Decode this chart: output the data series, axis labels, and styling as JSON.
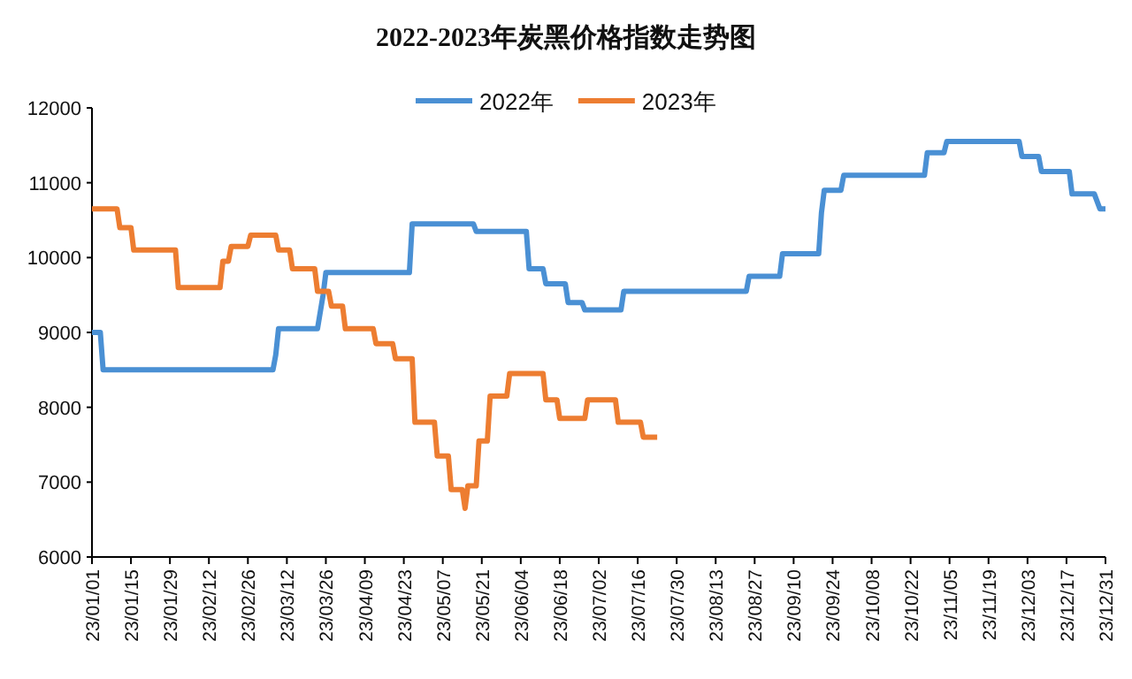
{
  "chart_data": {
    "type": "line",
    "title": "2022-2023年炭黑价格指数走势图",
    "legend": "top",
    "xlim": [
      "--01-01",
      "--12-31"
    ],
    "ylim": [
      6000,
      12000
    ],
    "yticks": [
      6000,
      7000,
      8000,
      9000,
      10000,
      11000,
      12000
    ],
    "xticks": [
      {
        "value": "--01-01",
        "label": "23/01/01"
      },
      {
        "value": "--01-15",
        "label": "23/01/15"
      },
      {
        "value": "--01-29",
        "label": "23/01/29"
      },
      {
        "value": "--02-12",
        "label": "23/02/12"
      },
      {
        "value": "--02-26",
        "label": "23/02/26"
      },
      {
        "value": "--03-12",
        "label": "23/03/12"
      },
      {
        "value": "--03-26",
        "label": "23/03/26"
      },
      {
        "value": "--04-09",
        "label": "23/04/09"
      },
      {
        "value": "--04-23",
        "label": "23/04/23"
      },
      {
        "value": "--05-07",
        "label": "23/05/07"
      },
      {
        "value": "--05-21",
        "label": "23/05/21"
      },
      {
        "value": "--06-04",
        "label": "23/06/04"
      },
      {
        "value": "--06-18",
        "label": "23/06/18"
      },
      {
        "value": "--07-02",
        "label": "23/07/02"
      },
      {
        "value": "--07-16",
        "label": "23/07/16"
      },
      {
        "value": "--07-30",
        "label": "23/07/30"
      },
      {
        "value": "--08-13",
        "label": "23/08/13"
      },
      {
        "value": "--08-27",
        "label": "23/08/27"
      },
      {
        "value": "--09-10",
        "label": "23/09/10"
      },
      {
        "value": "--09-24",
        "label": "23/09/24"
      },
      {
        "value": "--10-08",
        "label": "23/10/08"
      },
      {
        "value": "--10-22",
        "label": "23/10/22"
      },
      {
        "value": "--11-05",
        "label": "23/11/05"
      },
      {
        "value": "--11-19",
        "label": "23/11/19"
      },
      {
        "value": "--12-03",
        "label": "23/12/03"
      },
      {
        "value": "--12-17",
        "label": "23/12/17"
      },
      {
        "value": "--12-31",
        "label": "23/12/31"
      }
    ],
    "series": [
      {
        "name": "2022年",
        "color": "#4a90d4",
        "x": [
          "--01-01",
          "--01-04",
          "--01-05",
          "--03-07",
          "--03-08",
          "--03-09",
          "--03-23",
          "--03-25",
          "--03-26",
          "--04-25",
          "--04-26",
          "--05-18",
          "--05-19",
          "--06-06",
          "--06-07",
          "--06-12",
          "--06-13",
          "--06-20",
          "--06-21",
          "--06-26",
          "--06-27",
          "--07-10",
          "--07-11",
          "--08-24",
          "--08-25",
          "--09-05",
          "--09-06",
          "--09-19",
          "--09-20",
          "--09-21",
          "--09-27",
          "--09-28",
          "--10-27",
          "--10-28",
          "--11-03",
          "--11-04",
          "--11-30",
          "--12-01",
          "--12-07",
          "--12-08",
          "--12-18",
          "--12-19",
          "--12-27",
          "--12-29",
          "--12-31"
        ],
        "values": [
          9000,
          9000,
          8500,
          8500,
          8700,
          9050,
          9050,
          9500,
          9800,
          9800,
          10450,
          10450,
          10350,
          10350,
          9850,
          9850,
          9650,
          9650,
          9400,
          9400,
          9300,
          9300,
          9550,
          9550,
          9750,
          9750,
          10050,
          10050,
          10600,
          10900,
          10900,
          11100,
          11100,
          11400,
          11400,
          11550,
          11550,
          11350,
          11350,
          11150,
          11150,
          10850,
          10850,
          10650,
          10650
        ]
      },
      {
        "name": "2023年",
        "color": "#ed7d31",
        "x": [
          "--01-01",
          "--01-10",
          "--01-11",
          "--01-15",
          "--01-16",
          "--01-31",
          "--02-01",
          "--02-16",
          "--02-17",
          "--02-19",
          "--02-20",
          "--02-26",
          "--02-27",
          "--03-08",
          "--03-09",
          "--03-13",
          "--03-14",
          "--03-22",
          "--03-23",
          "--03-27",
          "--03-28",
          "--04-01",
          "--04-02",
          "--04-12",
          "--04-13",
          "--04-19",
          "--04-20",
          "--04-26",
          "--04-27",
          "--05-04",
          "--05-05",
          "--05-09",
          "--05-10",
          "--05-14",
          "--05-15",
          "--05-16",
          "--05-19",
          "--05-20",
          "--05-23",
          "--05-24",
          "--05-30",
          "--05-31",
          "--06-12",
          "--06-13",
          "--06-17",
          "--06-18",
          "--06-27",
          "--06-28",
          "--07-08",
          "--07-09",
          "--07-17",
          "--07-18",
          "--07-23"
        ],
        "values": [
          10650,
          10650,
          10400,
          10400,
          10100,
          10100,
          9600,
          9600,
          9950,
          9950,
          10150,
          10150,
          10300,
          10300,
          10100,
          10100,
          9850,
          9850,
          9550,
          9550,
          9350,
          9350,
          9050,
          9050,
          8850,
          8850,
          8650,
          8650,
          7800,
          7800,
          7350,
          7350,
          6900,
          6900,
          6650,
          6950,
          6950,
          7550,
          7550,
          8150,
          8150,
          8450,
          8450,
          8100,
          8100,
          7850,
          7850,
          8100,
          8100,
          7800,
          7800,
          7600,
          7600
        ]
      }
    ]
  }
}
